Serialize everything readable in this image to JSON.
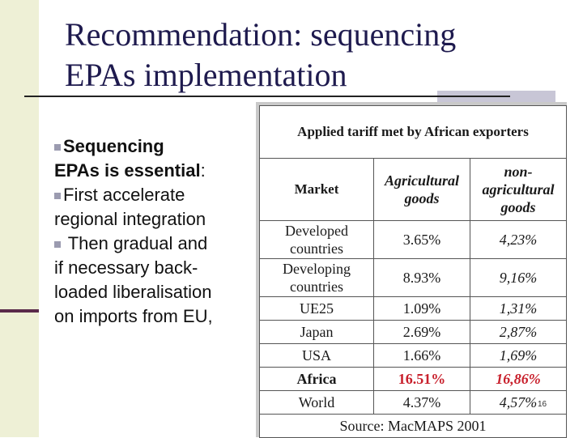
{
  "slide": {
    "title_line1": "Recommendation: sequencing",
    "title_line2": "EPAs implementation",
    "page_number": "16"
  },
  "content": {
    "point1_a": "Sequencing",
    "point1_b": "EPAs is essential",
    "point1_colon": ":",
    "point2_a": "First accelerate",
    "point2_b": "regional integration",
    "point3_a": " Then gradual and",
    "point3_b": "if necessary back-",
    "point3_c": "loaded liberalisation",
    "point3_d": "on imports from EU,"
  },
  "table": {
    "caption": "Applied tariff met by African exporters",
    "headers": {
      "market": "Market",
      "agri_line1": "Agricultural",
      "agri_line2": "goods",
      "nonagri_line1": "non-",
      "nonagri_line2": "agricultural",
      "nonagri_line3": "goods"
    },
    "rows": [
      {
        "label_line1": "Developed",
        "label_line2": "countries",
        "agri": "3.65%",
        "nonagri": "4,23%"
      },
      {
        "label_line1": "Developing",
        "label_line2": "countries",
        "agri": "8.93%",
        "nonagri": "9,16%"
      },
      {
        "label": "UE25",
        "agri": "1.09%",
        "nonagri": "1,31%"
      },
      {
        "label": "Japan",
        "agri": "2.69%",
        "nonagri": "2,87%"
      },
      {
        "label": "USA",
        "agri": "1.66%",
        "nonagri": "1,69%"
      },
      {
        "label": "Africa",
        "agri": "16.51%",
        "nonagri": "16,86%"
      },
      {
        "label": "World",
        "agri": "4.37%",
        "nonagri": "4,57%"
      }
    ],
    "source": "Source: MacMAPS 2001",
    "highlight_color": "#c8202c"
  }
}
